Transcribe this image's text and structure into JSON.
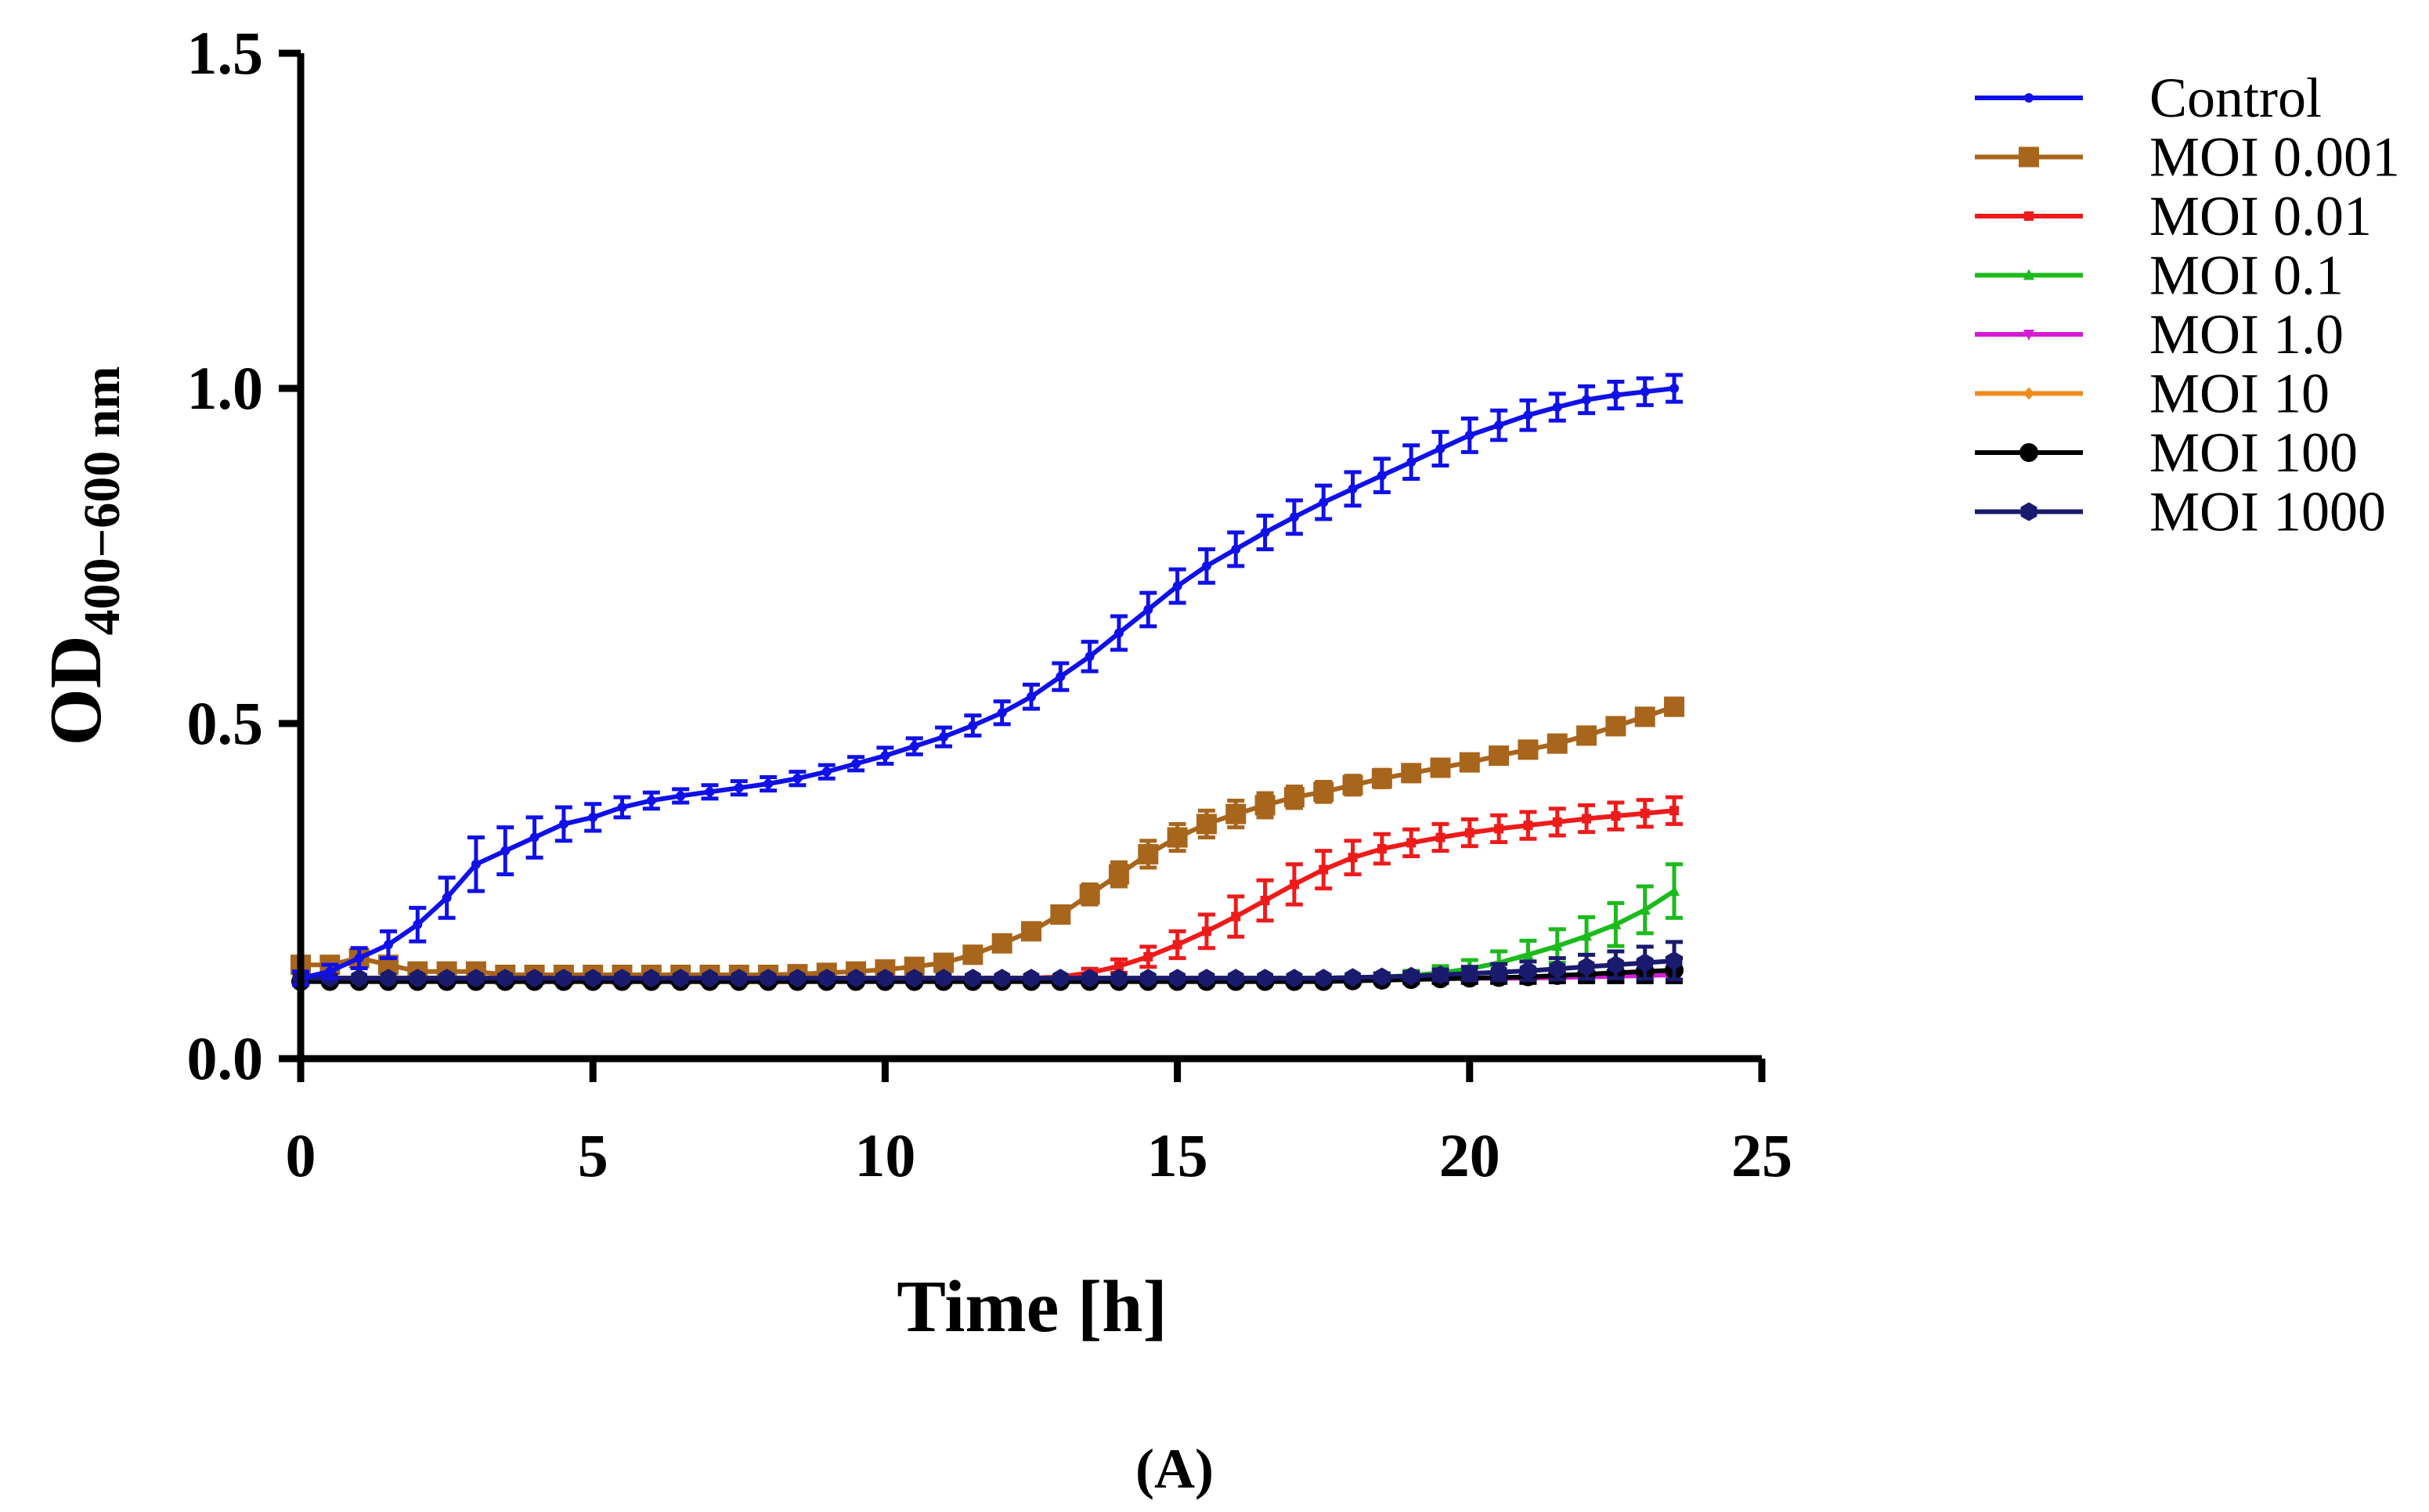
{
  "chart_data": {
    "type": "line",
    "panel_label": "(A)",
    "title": "",
    "xlabel": "Time [h]",
    "ylabel": {
      "main": "OD",
      "subscript": "400−600 nm"
    },
    "xlim": [
      0,
      25
    ],
    "ylim": [
      0,
      1.5
    ],
    "xticks": [
      0,
      5,
      10,
      15,
      20,
      25
    ],
    "yticks": [
      0.0,
      0.5,
      1.0,
      1.5
    ],
    "xtick_labels": [
      "0",
      "5",
      "10",
      "15",
      "20",
      "25"
    ],
    "ytick_labels": [
      "0.0",
      "0.5",
      "1.0",
      "1.5"
    ],
    "grid": false,
    "legend_position": "right",
    "x": [
      0,
      0.5,
      1,
      1.5,
      2,
      2.5,
      3,
      3.5,
      4,
      4.5,
      5,
      5.5,
      6,
      6.5,
      7,
      7.5,
      8,
      8.5,
      9,
      9.5,
      10,
      10.5,
      11,
      11.5,
      12,
      12.5,
      13,
      13.5,
      14,
      14.5,
      15,
      15.5,
      16,
      16.5,
      17,
      17.5,
      18,
      18.5,
      19,
      19.5,
      20,
      20.5,
      21,
      21.5,
      22,
      22.5,
      23,
      23.5
    ],
    "series": [
      {
        "name": "Control",
        "color": "#1010e8",
        "marker": "dot",
        "values": [
          0.12,
          0.13,
          0.15,
          0.17,
          0.2,
          0.24,
          0.29,
          0.31,
          0.33,
          0.35,
          0.36,
          0.375,
          0.385,
          0.392,
          0.398,
          0.404,
          0.41,
          0.418,
          0.428,
          0.44,
          0.452,
          0.466,
          0.48,
          0.497,
          0.516,
          0.54,
          0.57,
          0.6,
          0.635,
          0.67,
          0.705,
          0.735,
          0.76,
          0.785,
          0.808,
          0.83,
          0.85,
          0.87,
          0.89,
          0.91,
          0.93,
          0.945,
          0.96,
          0.972,
          0.983,
          0.99,
          0.995,
          1.0
        ],
        "errors": [
          0.01,
          0.01,
          0.015,
          0.02,
          0.025,
          0.03,
          0.04,
          0.035,
          0.03,
          0.025,
          0.02,
          0.015,
          0.012,
          0.01,
          0.01,
          0.01,
          0.01,
          0.01,
          0.01,
          0.01,
          0.012,
          0.012,
          0.014,
          0.015,
          0.017,
          0.018,
          0.02,
          0.022,
          0.025,
          0.025,
          0.025,
          0.025,
          0.025,
          0.025,
          0.025,
          0.025,
          0.025,
          0.025,
          0.025,
          0.025,
          0.025,
          0.022,
          0.022,
          0.02,
          0.02,
          0.02,
          0.02,
          0.02
        ]
      },
      {
        "name": "MOI 0.001",
        "color": "#a8651c",
        "marker": "square",
        "values": [
          0.14,
          0.14,
          0.15,
          0.14,
          0.13,
          0.13,
          0.13,
          0.125,
          0.125,
          0.125,
          0.125,
          0.125,
          0.125,
          0.125,
          0.125,
          0.125,
          0.125,
          0.126,
          0.128,
          0.13,
          0.133,
          0.137,
          0.143,
          0.155,
          0.172,
          0.19,
          0.215,
          0.245,
          0.275,
          0.305,
          0.33,
          0.35,
          0.365,
          0.378,
          0.39,
          0.398,
          0.408,
          0.418,
          0.426,
          0.434,
          0.442,
          0.452,
          0.461,
          0.47,
          0.482,
          0.496,
          0.51,
          0.525
        ],
        "errors": [
          0.005,
          0.005,
          0.008,
          0.006,
          0.005,
          0.005,
          0.005,
          0.005,
          0.005,
          0.005,
          0.005,
          0.005,
          0.005,
          0.005,
          0.005,
          0.005,
          0.005,
          0.005,
          0.005,
          0.005,
          0.005,
          0.006,
          0.006,
          0.007,
          0.008,
          0.01,
          0.012,
          0.015,
          0.018,
          0.02,
          0.02,
          0.02,
          0.02,
          0.018,
          0.016,
          0.015,
          0.014,
          0.013,
          0.012,
          0.012,
          0.012,
          0.012,
          0.012,
          0.012,
          0.012,
          0.012,
          0.012,
          0.012
        ]
      },
      {
        "name": "MOI 0.01",
        "color": "#ee1b1b",
        "marker": "small-square",
        "values": [
          0.12,
          0.12,
          0.12,
          0.12,
          0.12,
          0.12,
          0.12,
          0.12,
          0.12,
          0.12,
          0.12,
          0.12,
          0.12,
          0.12,
          0.12,
          0.12,
          0.12,
          0.12,
          0.12,
          0.12,
          0.12,
          0.12,
          0.12,
          0.12,
          0.12,
          0.12,
          0.122,
          0.128,
          0.138,
          0.152,
          0.17,
          0.19,
          0.212,
          0.236,
          0.26,
          0.282,
          0.3,
          0.313,
          0.322,
          0.33,
          0.337,
          0.343,
          0.348,
          0.353,
          0.358,
          0.362,
          0.366,
          0.37
        ],
        "errors": [
          0.003,
          0.003,
          0.003,
          0.003,
          0.003,
          0.003,
          0.003,
          0.003,
          0.003,
          0.003,
          0.003,
          0.003,
          0.003,
          0.003,
          0.003,
          0.003,
          0.003,
          0.003,
          0.003,
          0.003,
          0.003,
          0.003,
          0.003,
          0.003,
          0.003,
          0.003,
          0.004,
          0.006,
          0.01,
          0.015,
          0.02,
          0.025,
          0.03,
          0.03,
          0.03,
          0.028,
          0.025,
          0.022,
          0.02,
          0.02,
          0.02,
          0.02,
          0.02,
          0.02,
          0.02,
          0.02,
          0.02,
          0.02
        ]
      },
      {
        "name": "MOI 0.1",
        "color": "#1cba1c",
        "marker": "triangle",
        "values": [
          0.12,
          0.12,
          0.12,
          0.12,
          0.12,
          0.12,
          0.12,
          0.12,
          0.12,
          0.12,
          0.12,
          0.12,
          0.12,
          0.12,
          0.12,
          0.12,
          0.12,
          0.12,
          0.12,
          0.12,
          0.12,
          0.12,
          0.12,
          0.12,
          0.12,
          0.12,
          0.12,
          0.12,
          0.12,
          0.12,
          0.12,
          0.12,
          0.12,
          0.12,
          0.12,
          0.12,
          0.121,
          0.122,
          0.124,
          0.128,
          0.134,
          0.143,
          0.155,
          0.168,
          0.183,
          0.2,
          0.222,
          0.25
        ],
        "errors": [
          0.003,
          0.003,
          0.003,
          0.003,
          0.003,
          0.003,
          0.003,
          0.003,
          0.003,
          0.003,
          0.003,
          0.003,
          0.003,
          0.003,
          0.003,
          0.003,
          0.003,
          0.003,
          0.003,
          0.003,
          0.003,
          0.003,
          0.003,
          0.003,
          0.003,
          0.003,
          0.003,
          0.003,
          0.003,
          0.003,
          0.003,
          0.003,
          0.003,
          0.003,
          0.003,
          0.003,
          0.004,
          0.005,
          0.007,
          0.01,
          0.013,
          0.017,
          0.021,
          0.025,
          0.028,
          0.032,
          0.035,
          0.04
        ]
      },
      {
        "name": "MOI 1.0",
        "color": "#d41cd4",
        "marker": "triangle-down",
        "values": [
          0.12,
          0.12,
          0.12,
          0.12,
          0.12,
          0.12,
          0.12,
          0.12,
          0.12,
          0.12,
          0.12,
          0.12,
          0.12,
          0.12,
          0.12,
          0.12,
          0.12,
          0.12,
          0.12,
          0.12,
          0.12,
          0.12,
          0.12,
          0.12,
          0.12,
          0.12,
          0.12,
          0.12,
          0.12,
          0.12,
          0.12,
          0.12,
          0.12,
          0.12,
          0.12,
          0.12,
          0.12,
          0.12,
          0.12,
          0.12,
          0.12,
          0.12,
          0.12,
          0.121,
          0.122,
          0.123,
          0.124,
          0.125
        ],
        "errors": [
          0.003,
          0.003,
          0.003,
          0.003,
          0.003,
          0.003,
          0.003,
          0.003,
          0.003,
          0.003,
          0.003,
          0.003,
          0.003,
          0.003,
          0.003,
          0.003,
          0.003,
          0.003,
          0.003,
          0.003,
          0.003,
          0.003,
          0.003,
          0.003,
          0.003,
          0.003,
          0.003,
          0.003,
          0.003,
          0.003,
          0.003,
          0.003,
          0.003,
          0.003,
          0.003,
          0.003,
          0.003,
          0.003,
          0.003,
          0.003,
          0.003,
          0.003,
          0.003,
          0.004,
          0.005,
          0.006,
          0.007,
          0.008
        ]
      },
      {
        "name": "MOI 10",
        "color": "#f08a1c",
        "marker": "diamond",
        "values": [
          0.12,
          0.12,
          0.12,
          0.12,
          0.12,
          0.12,
          0.12,
          0.12,
          0.12,
          0.12,
          0.12,
          0.12,
          0.12,
          0.12,
          0.12,
          0.12,
          0.12,
          0.12,
          0.12,
          0.12,
          0.12,
          0.12,
          0.12,
          0.12,
          0.12,
          0.12,
          0.12,
          0.12,
          0.12,
          0.12,
          0.12,
          0.12,
          0.12,
          0.12,
          0.12,
          0.12,
          0.12,
          0.12,
          0.12,
          0.12,
          0.12,
          0.12,
          0.12,
          0.121,
          0.122,
          0.123,
          0.124,
          0.126
        ],
        "errors": [
          0.003,
          0.003,
          0.003,
          0.003,
          0.003,
          0.003,
          0.003,
          0.003,
          0.003,
          0.003,
          0.003,
          0.003,
          0.003,
          0.003,
          0.003,
          0.003,
          0.003,
          0.003,
          0.003,
          0.003,
          0.003,
          0.003,
          0.003,
          0.003,
          0.003,
          0.003,
          0.003,
          0.003,
          0.003,
          0.003,
          0.003,
          0.003,
          0.003,
          0.003,
          0.003,
          0.003,
          0.003,
          0.003,
          0.003,
          0.003,
          0.003,
          0.003,
          0.003,
          0.004,
          0.005,
          0.006,
          0.007,
          0.008
        ]
      },
      {
        "name": "MOI 100",
        "color": "#000000",
        "marker": "circle",
        "values": [
          0.115,
          0.115,
          0.115,
          0.115,
          0.115,
          0.115,
          0.115,
          0.115,
          0.115,
          0.115,
          0.115,
          0.115,
          0.115,
          0.115,
          0.115,
          0.115,
          0.115,
          0.115,
          0.115,
          0.115,
          0.115,
          0.115,
          0.115,
          0.115,
          0.115,
          0.115,
          0.115,
          0.115,
          0.115,
          0.115,
          0.115,
          0.115,
          0.115,
          0.115,
          0.115,
          0.115,
          0.116,
          0.117,
          0.118,
          0.119,
          0.12,
          0.121,
          0.122,
          0.124,
          0.126,
          0.128,
          0.13,
          0.132
        ],
        "errors": [
          0.003,
          0.003,
          0.003,
          0.003,
          0.003,
          0.003,
          0.003,
          0.003,
          0.003,
          0.003,
          0.003,
          0.003,
          0.003,
          0.003,
          0.003,
          0.003,
          0.003,
          0.003,
          0.003,
          0.003,
          0.003,
          0.003,
          0.003,
          0.003,
          0.003,
          0.003,
          0.003,
          0.003,
          0.003,
          0.003,
          0.003,
          0.003,
          0.003,
          0.003,
          0.003,
          0.003,
          0.004,
          0.004,
          0.005,
          0.006,
          0.007,
          0.008,
          0.009,
          0.01,
          0.012,
          0.014,
          0.016,
          0.018
        ]
      },
      {
        "name": "MOI 1000",
        "color": "#1a1a6e",
        "marker": "hexagon",
        "values": [
          0.12,
          0.12,
          0.12,
          0.12,
          0.12,
          0.12,
          0.12,
          0.12,
          0.12,
          0.12,
          0.12,
          0.12,
          0.12,
          0.12,
          0.12,
          0.12,
          0.12,
          0.12,
          0.12,
          0.12,
          0.12,
          0.12,
          0.12,
          0.12,
          0.12,
          0.12,
          0.12,
          0.12,
          0.12,
          0.12,
          0.12,
          0.12,
          0.12,
          0.12,
          0.12,
          0.12,
          0.121,
          0.122,
          0.123,
          0.125,
          0.127,
          0.129,
          0.131,
          0.134,
          0.137,
          0.14,
          0.143,
          0.146
        ],
        "errors": [
          0.003,
          0.003,
          0.003,
          0.003,
          0.003,
          0.003,
          0.003,
          0.003,
          0.003,
          0.003,
          0.003,
          0.003,
          0.003,
          0.003,
          0.003,
          0.003,
          0.003,
          0.003,
          0.003,
          0.003,
          0.003,
          0.003,
          0.003,
          0.003,
          0.003,
          0.003,
          0.003,
          0.003,
          0.003,
          0.003,
          0.003,
          0.003,
          0.003,
          0.003,
          0.003,
          0.003,
          0.004,
          0.005,
          0.006,
          0.008,
          0.01,
          0.012,
          0.014,
          0.016,
          0.018,
          0.02,
          0.024,
          0.028
        ]
      }
    ]
  }
}
